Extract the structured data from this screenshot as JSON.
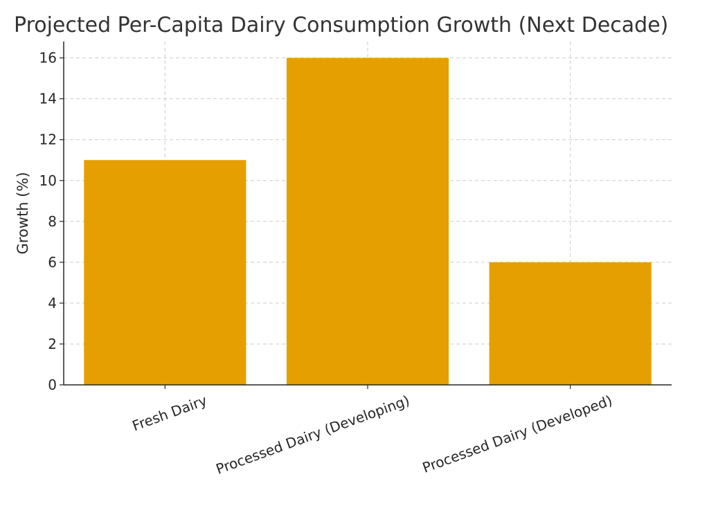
{
  "chart_data": {
    "type": "bar",
    "title": "Projected Per-Capita Dairy Consumption Growth (Next Decade)",
    "xlabel": "",
    "ylabel": "Growth (%)",
    "categories": [
      "Fresh Dairy",
      "Processed Dairy (Developing)",
      "Processed Dairy (Developed)"
    ],
    "values": [
      11,
      16,
      6
    ],
    "ylim": [
      0,
      16.8
    ],
    "yticks": [
      0,
      2,
      4,
      6,
      8,
      10,
      12,
      14,
      16
    ],
    "grid": true,
    "bar_color": "#E69F00"
  }
}
